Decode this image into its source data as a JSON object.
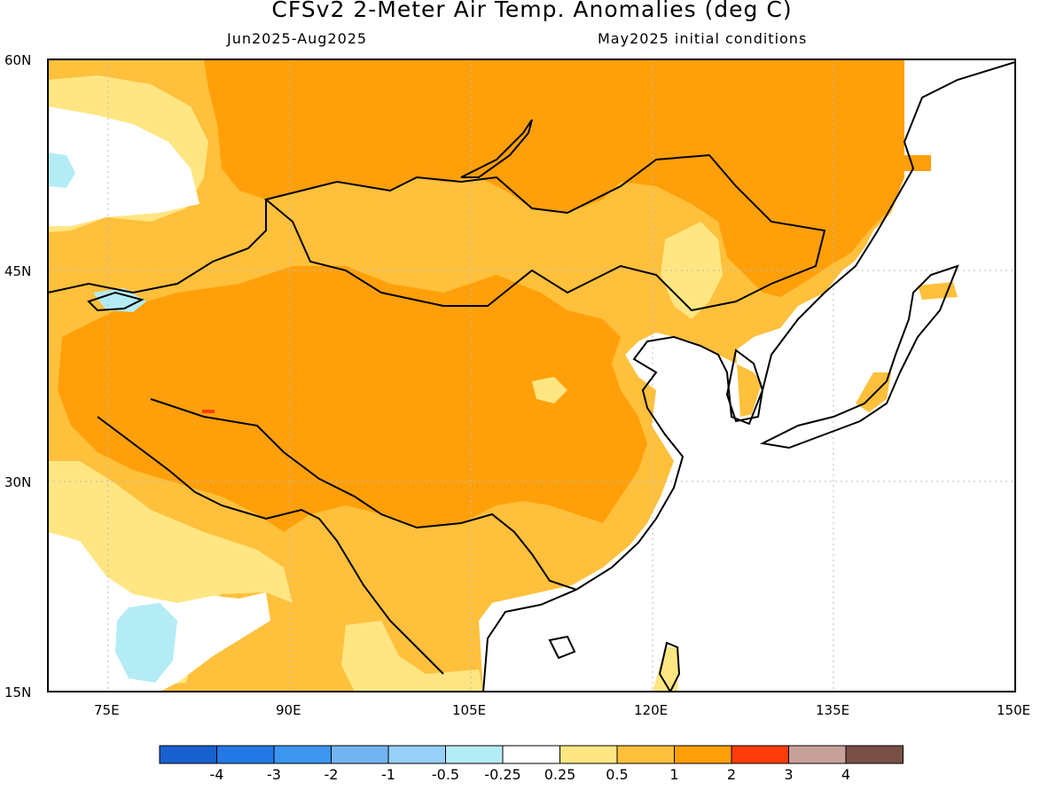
{
  "title": "CFSv2 2-Meter Air Temp. Anomalies (deg C)",
  "subtitle_left": "Jun2025-Aug2025",
  "subtitle_right": "May2025 initial conditions",
  "map": {
    "lat_ticks": [
      "60N",
      "45N",
      "30N",
      "15N"
    ],
    "lon_ticks": [
      "75E",
      "90E",
      "105E",
      "120E",
      "135E",
      "150E"
    ],
    "region": {
      "lon_range": [
        70,
        150
      ],
      "lat_range": [
        15,
        60
      ]
    },
    "grid": true,
    "dominant_anomaly": "+1 to +2 deg C over most of the land area"
  },
  "colorbar": {
    "labels": [
      "-4",
      "-3",
      "-2",
      "-1",
      "-0.5",
      "-0.25",
      "0.25",
      "0.5",
      "1",
      "2",
      "3",
      "4"
    ],
    "colors": [
      "#1860d0",
      "#2478e6",
      "#3c96f0",
      "#74b4f2",
      "#96d0f8",
      "#b4ecf6",
      "#ffffff",
      "#ffe682",
      "#ffc03c",
      "#ffa00a",
      "#ff3c0a",
      "#c8a09a",
      "#785046"
    ]
  },
  "colors": {
    "anom_0_25_0_5": "#ffe682",
    "anom_0_5_1": "#ffc03c",
    "anom_1_2": "#ffa00a",
    "anom_2_3": "#ff3c0a",
    "anom_neg_0_25_neg_0_5": "#b4ecf6",
    "anom_neg_0_5_neg_1": "#96d0f8"
  }
}
